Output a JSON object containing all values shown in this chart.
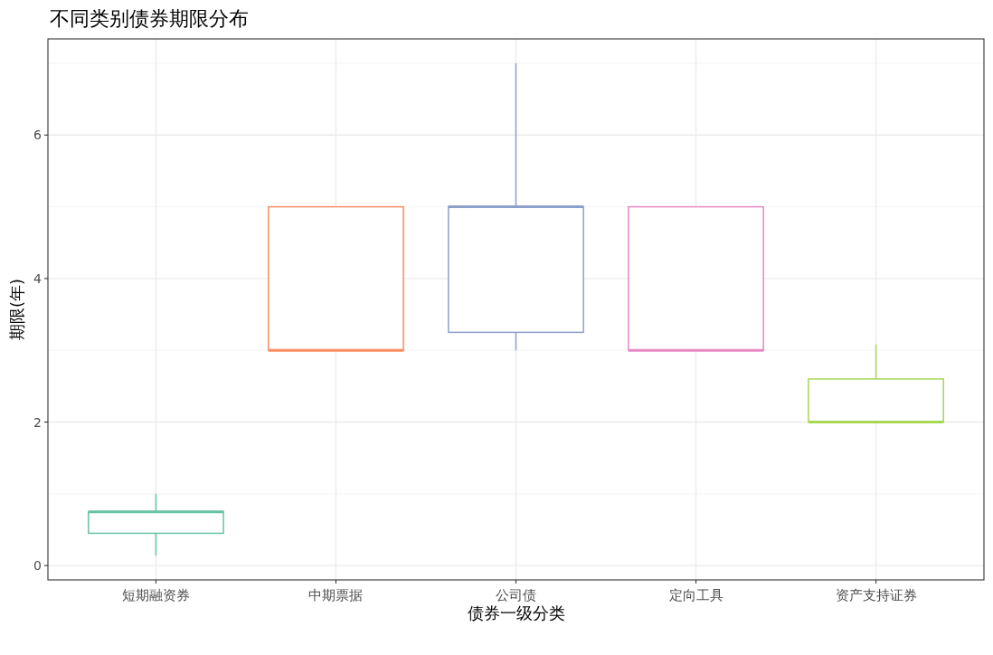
{
  "chart_data": {
    "type": "box",
    "title": "不同类别债券期限分布",
    "xlabel": "债券一级分类",
    "ylabel": "期限(年)",
    "categories": [
      "短期融资券",
      "中期票据",
      "公司债",
      "定向工具",
      "资产支持证券"
    ],
    "colors": [
      "#66c2a5",
      "#fc8d62",
      "#8da0cb",
      "#e78ac3",
      "#a6d854"
    ],
    "boxes": [
      {
        "low": 0.14,
        "q1": 0.45,
        "median": 0.75,
        "q3": 0.75,
        "high": 1
      },
      {
        "low": 3,
        "q1": 3,
        "median": 3,
        "q3": 5,
        "high": 5
      },
      {
        "low": 3,
        "q1": 3.25,
        "median": 5,
        "q3": 5,
        "high": 7
      },
      {
        "low": 3,
        "q1": 3,
        "median": 3,
        "q3": 5,
        "high": 5
      },
      {
        "low": 2,
        "q1": 2,
        "median": 2,
        "q3": 2.6,
        "high": 3.08
      }
    ],
    "ylim": [
      -0.2,
      7.34
    ],
    "yticks": [
      0,
      2,
      4,
      6
    ],
    "grid": true
  }
}
